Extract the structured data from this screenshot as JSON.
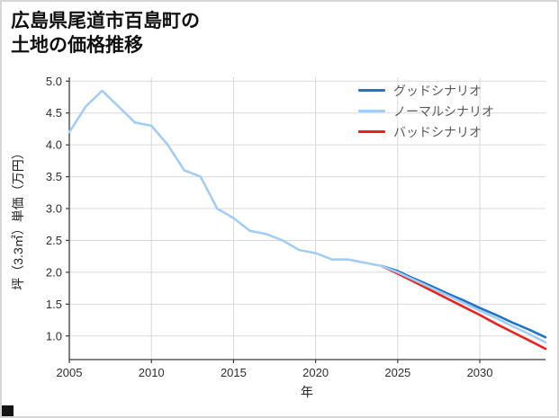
{
  "header": {
    "title_line1": "広島県尾道市百島町の",
    "title_line2": "土地の価格推移"
  },
  "chart_data": {
    "type": "line",
    "title": "広島県尾道市百島町の土地の価格推移",
    "xlabel": "年",
    "ylabel": "坪（3.3㎡）単価（万円）",
    "xlim": [
      2005,
      2034
    ],
    "ylim": [
      0.63,
      5.06
    ],
    "xticks": [
      2005,
      2010,
      2015,
      2020,
      2025,
      2030
    ],
    "yticks": [
      1.0,
      1.5,
      2.0,
      2.5,
      3.0,
      3.5,
      4.0,
      4.5,
      5.0
    ],
    "grid": true,
    "legend_position": "upper right",
    "series": [
      {
        "name": "グッドシナリオ",
        "color": "#2274c5",
        "x": [
          2024,
          2025,
          2026,
          2027,
          2028,
          2029,
          2030,
          2031,
          2032,
          2033,
          2034
        ],
        "y": [
          2.1,
          2.02,
          1.9,
          1.79,
          1.67,
          1.56,
          1.44,
          1.33,
          1.21,
          1.1,
          0.98
        ]
      },
      {
        "name": "ノーマルシナリオ",
        "color": "#a5cdf2",
        "x": [
          2005,
          2006,
          2007,
          2008,
          2009,
          2010,
          2011,
          2012,
          2013,
          2014,
          2015,
          2016,
          2017,
          2018,
          2019,
          2020,
          2021,
          2022,
          2023,
          2024,
          2025,
          2026,
          2027,
          2028,
          2029,
          2030,
          2031,
          2032,
          2033,
          2034
        ],
        "y": [
          4.2,
          4.6,
          4.85,
          4.6,
          4.35,
          4.3,
          4.0,
          3.6,
          3.5,
          3.0,
          2.85,
          2.65,
          2.6,
          2.5,
          2.35,
          2.3,
          2.2,
          2.2,
          2.15,
          2.1,
          2.0,
          1.88,
          1.76,
          1.64,
          1.52,
          1.4,
          1.28,
          1.15,
          1.03,
          0.9
        ]
      },
      {
        "name": "バッドシナリオ",
        "color": "#e8221c",
        "x": [
          2024,
          2025,
          2026,
          2027,
          2028,
          2029,
          2030,
          2031,
          2032,
          2033,
          2034
        ],
        "y": [
          2.1,
          1.98,
          1.85,
          1.72,
          1.59,
          1.46,
          1.33,
          1.19,
          1.06,
          0.93,
          0.8
        ]
      }
    ]
  }
}
